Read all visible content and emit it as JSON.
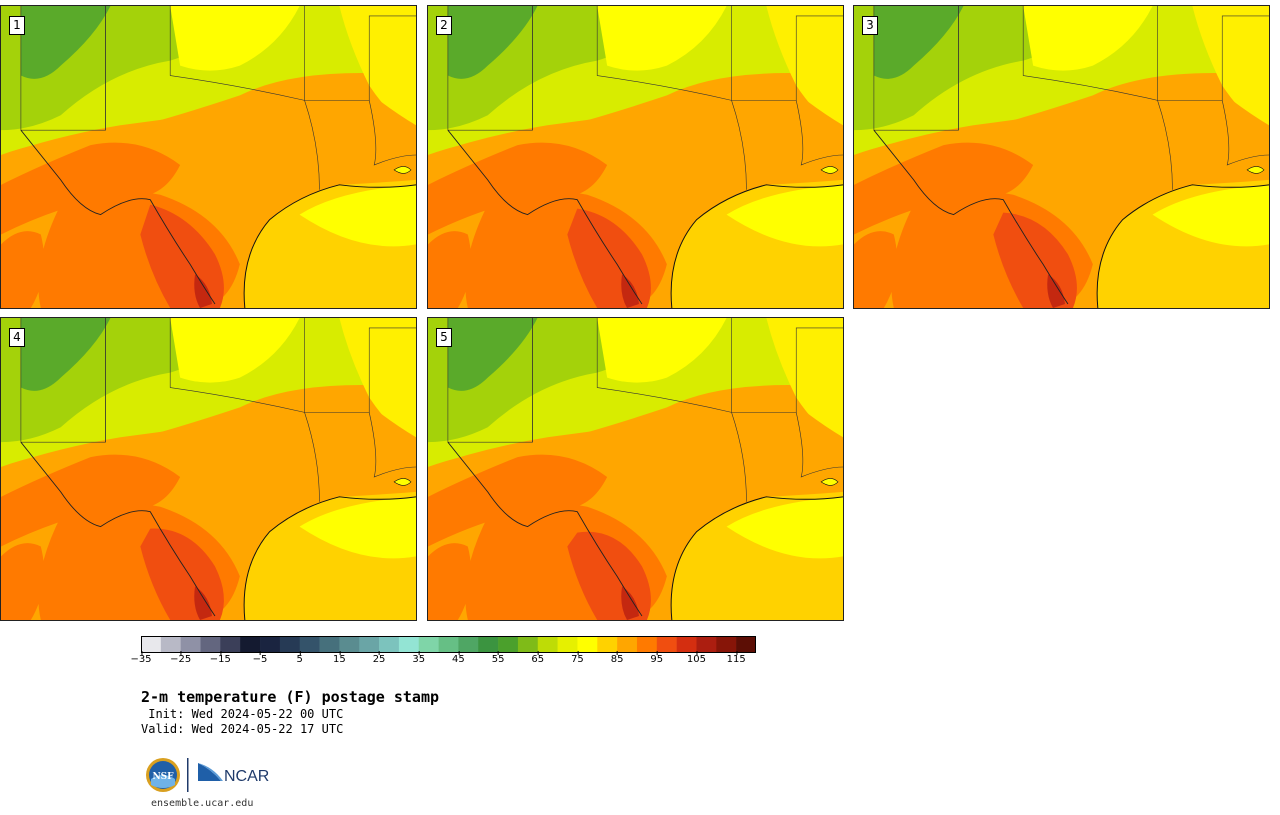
{
  "product": {
    "title": "2-m temperature (F) postage stamp",
    "init_label": " Init: Wed 2024-05-22 00 UTC",
    "valid_label": "Valid: Wed 2024-05-22 17 UTC",
    "website": "ensemble.ucar.edu"
  },
  "panels": [
    {
      "member": "1"
    },
    {
      "member": "2"
    },
    {
      "member": "3"
    },
    {
      "member": "4"
    },
    {
      "member": "5"
    }
  ],
  "colorbar": {
    "min": -35,
    "max": 120,
    "step": 5,
    "tick_labels": [
      "−35",
      "−25",
      "−15",
      "−5",
      "5",
      "15",
      "25",
      "35",
      "45",
      "55",
      "65",
      "75",
      "85",
      "95",
      "105",
      "115"
    ],
    "colors": [
      "#e8e8ec",
      "#b8b9c6",
      "#8f91a6",
      "#63667f",
      "#3b3f59",
      "#141a30",
      "#1a2440",
      "#263a55",
      "#34536a",
      "#46707c",
      "#5a8c90",
      "#6aa5a6",
      "#7cc3bd",
      "#93e4d4",
      "#7fd5a8",
      "#66bf85",
      "#4fa664",
      "#3b9440",
      "#4ba02c",
      "#7fbb18",
      "#bedc06",
      "#e6f000",
      "#ffff00",
      "#ffd200",
      "#ffa600",
      "#ff7a00",
      "#f04e10",
      "#d42e10",
      "#ac1e10",
      "#871508",
      "#5c0e05"
    ]
  },
  "logos": {
    "nsf_text": "NSF",
    "ncar_text": "NCAR"
  }
}
